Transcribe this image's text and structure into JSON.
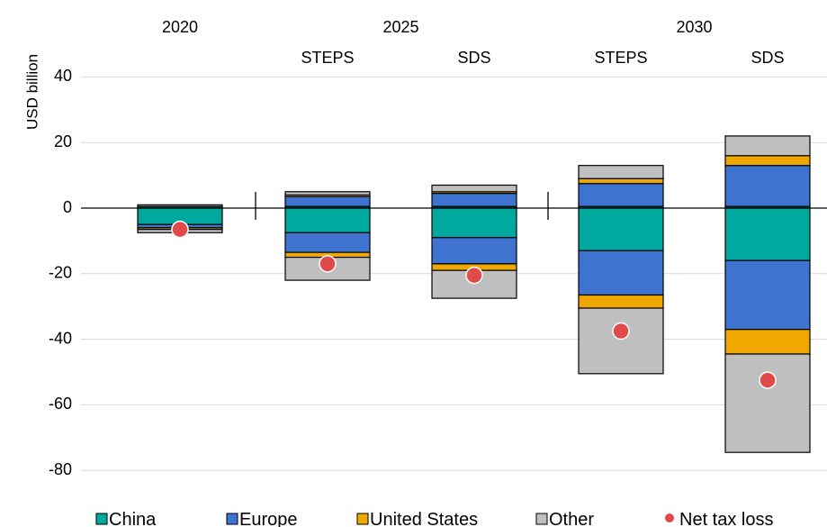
{
  "chart_data": {
    "type": "bar",
    "stacked": true,
    "ylabel": "USD billion",
    "ylim": [
      -80,
      40
    ],
    "yticks": [
      -80,
      -60,
      -40,
      -20,
      0,
      20,
      40
    ],
    "grid": true,
    "legend_position": "bottom",
    "year_labels": [
      {
        "label": "2020",
        "columns": [
          0
        ]
      },
      {
        "label": "2025",
        "columns": [
          1,
          2
        ]
      },
      {
        "label": "2030",
        "columns": [
          3,
          4
        ]
      }
    ],
    "categories": [
      "2020",
      "2025 STEPS",
      "2025 SDS",
      "2030 STEPS",
      "2030 SDS"
    ],
    "scenario_labels": [
      "",
      "STEPS",
      "SDS",
      "STEPS",
      "SDS"
    ],
    "series": [
      {
        "name": "China",
        "color": "#00a99d",
        "positive": [
          0.5,
          0.5,
          0.5,
          0.5,
          0.5
        ],
        "negative": [
          -5,
          -7.5,
          -9,
          -13,
          -16
        ]
      },
      {
        "name": "Europe",
        "color": "#3e73cf",
        "positive": [
          0,
          3,
          4,
          7,
          12.5
        ],
        "negative": [
          -1,
          -6,
          -8,
          -13.5,
          -21
        ]
      },
      {
        "name": "United States",
        "color": "#f0a800",
        "positive": [
          0,
          0.5,
          0.5,
          1.5,
          3
        ],
        "negative": [
          -0.5,
          -1.5,
          -2,
          -4,
          -7.5
        ]
      },
      {
        "name": "Other",
        "color": "#bfbfbf",
        "positive": [
          0.5,
          1,
          2,
          4,
          6
        ],
        "negative": [
          -1,
          -7,
          -8.5,
          -20,
          -30
        ]
      }
    ],
    "net_tax_loss": {
      "name": "Net tax loss",
      "color": "#e04a4a",
      "values": [
        -6.5,
        -17,
        -20.5,
        -37.5,
        -52.5
      ]
    }
  },
  "legend": {
    "china": "China",
    "europe": "Europe",
    "united_states": "United States",
    "other": "Other",
    "net_tax_loss": "Net tax loss"
  }
}
